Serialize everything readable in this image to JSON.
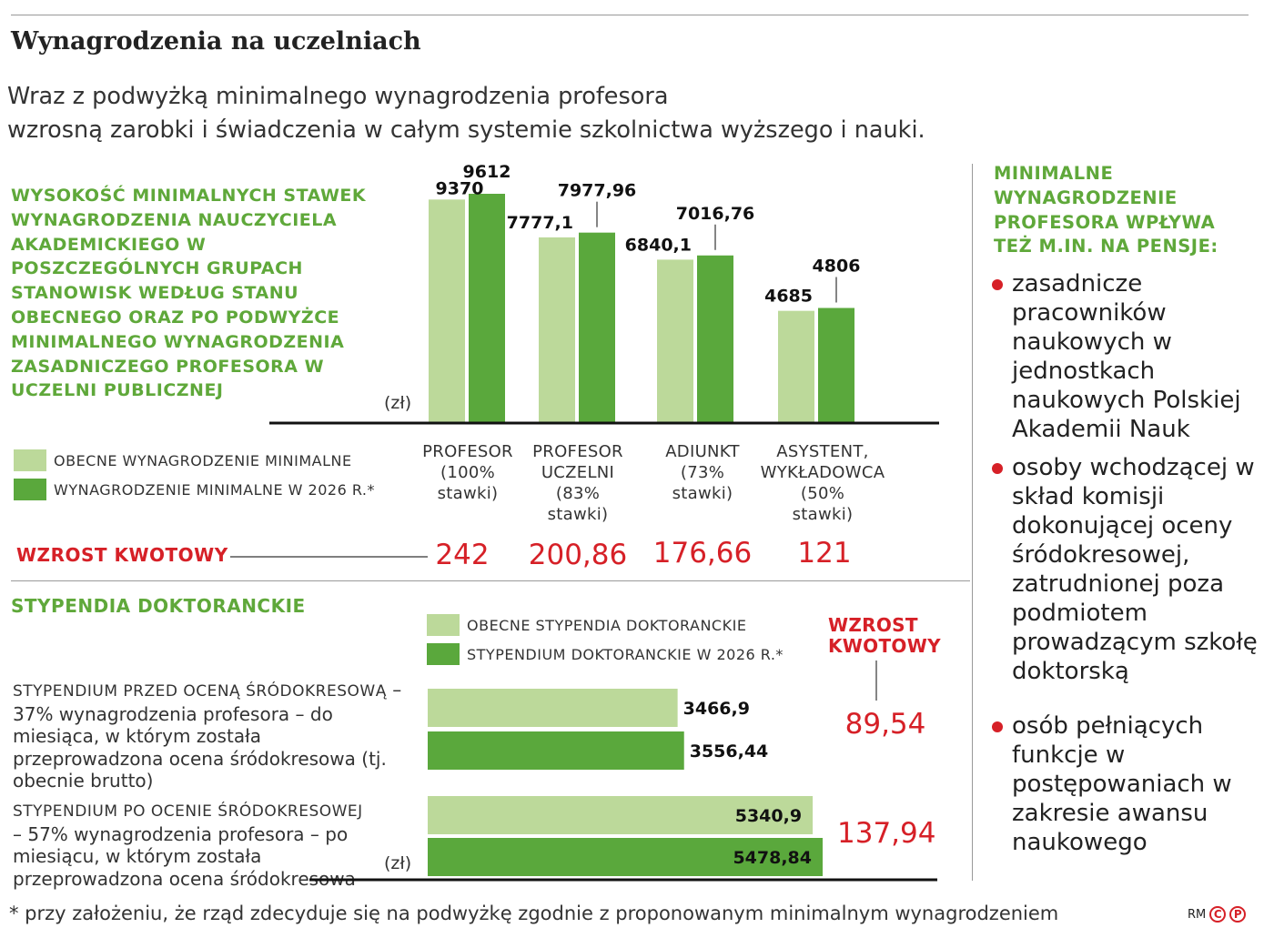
{
  "header": {
    "title": "Wynagrodzenia na uczelniach",
    "subtitle_line1": "Wraz z podwyżką minimalnego wynagrodzenia profesora",
    "subtitle_line2": "wzrosną zarobki i świadczenia w całym systemie szkolnictwa wyższego i nauki."
  },
  "colors": {
    "light_green": "#bcd99a",
    "dark_green": "#5aa83c",
    "accent_red": "#d62027",
    "title_green": "#5fa83a"
  },
  "section1": {
    "title": "Wysokość minimalnych stawek wynagrodzenia nauczyciela akademickiego w poszczególnych grupach stanowisk według stanu obecnego oraz po podwyżce minimalnego wynagrodzenia zasadniczego profesora w uczelni publicznej",
    "unit": "(zł)",
    "legend_current": "OBECNE WYNAGRODZENIE MINIMALNE",
    "legend_2026": "WYNAGRODZENIE MINIMALNE W 2026 R.*",
    "increase_label": "WZROST KWOTOWY",
    "category_labels": [
      "PROFESOR\n(100%\nstawki)",
      "PROFESOR\nUCZELNI\n(83%\nstawki)",
      "ADIUNKT\n(73%\nstawki)",
      "ASYSTENT,\nWYKŁADOWCA\n(50%\nstawki)"
    ],
    "increases": [
      "242",
      "200,86",
      "176,66",
      "121"
    ]
  },
  "section2": {
    "title": "Stypendia doktoranckie",
    "legend_current": "OBECNE STYPENDIA DOKTORANCKIE",
    "legend_2026": "STYPENDIUM DOKTORANCKIE W 2026 R.*",
    "increase_label_line1": "WZROST",
    "increase_label_line2": "KWOTOWY",
    "unit": "(zł)",
    "desc1_caps": "STYPENDIUM PRZED OCENĄ ŚRÓDOKRESOWĄ",
    "desc1_rest": "– 37% wynagrodzenia profesora – do miesiąca, w którym została przeprowadzona ocena śródokresowa (tj. obecnie brutto)",
    "desc2_caps": "STYPENDIUM PO OCENIE ŚRÓDOKRESOWEJ",
    "desc2_rest": "– 57% wynagrodzenia profesora – po miesiącu, w którym została przeprowadzona ocena śródokresowa",
    "increases": [
      "89,54",
      "137,94"
    ]
  },
  "sidebar": {
    "title": "Minimalne wynagrodzenie profesora wpływa też m.in. na pensje:",
    "items": [
      "zasadnicze pracowników naukowych w jednostkach naukowych Polskiej Akademii Nauk",
      "osoby wchodzącej w skład komisji dokonującej oceny śródokresowej, zatrudnionej poza podmiotem prowadzącym szkołę doktorską",
      "osób pełniących funkcje w postępowaniach w zakresie awansu naukowego"
    ]
  },
  "footer": {
    "footnote": "* przy założeniu, że rząd zdecyduje się na podwyżkę zgodnie z proponowanym minimalnym wynagrodzeniem",
    "credit": "RM",
    "logo_c": "C",
    "logo_p": "P"
  },
  "chart_data": [
    {
      "type": "bar",
      "orientation": "vertical",
      "categories": [
        "PROFESOR (100% stawki)",
        "PROFESOR UCZELNI (83% stawki)",
        "ADIUNKT (73% stawki)",
        "ASYSTENT, WYKŁADOWCA (50% stawki)"
      ],
      "series": [
        {
          "name": "OBECNE WYNAGRODZENIE MINIMALNE",
          "values": [
            9370,
            7777.1,
            6840.1,
            4685
          ],
          "labels": [
            "9370",
            "7777,1",
            "6840,1",
            "4685"
          ]
        },
        {
          "name": "WYNAGRODZENIE MINIMALNE W 2026 R.*",
          "values": [
            9612,
            7977.96,
            7016.76,
            4806
          ],
          "labels": [
            "9612",
            "7977,96",
            "7016,76",
            "4806"
          ]
        }
      ],
      "ylabel": "(zł)",
      "ylim": [
        0,
        9612
      ]
    },
    {
      "type": "bar",
      "orientation": "horizontal",
      "categories": [
        "Stypendium przed oceną śródokresową",
        "Stypendium po ocenie śródokresowej"
      ],
      "series": [
        {
          "name": "OBECNE STYPENDIA DOKTORANCKIE",
          "values": [
            3466.9,
            5340.9
          ],
          "labels": [
            "3466,9",
            "5340,9"
          ]
        },
        {
          "name": "STYPENDIUM DOKTORANCKIE W 2026 R.*",
          "values": [
            3556.44,
            5478.84
          ],
          "labels": [
            "3556,44",
            "5478,84"
          ]
        }
      ],
      "xlabel": "(zł)"
    }
  ]
}
